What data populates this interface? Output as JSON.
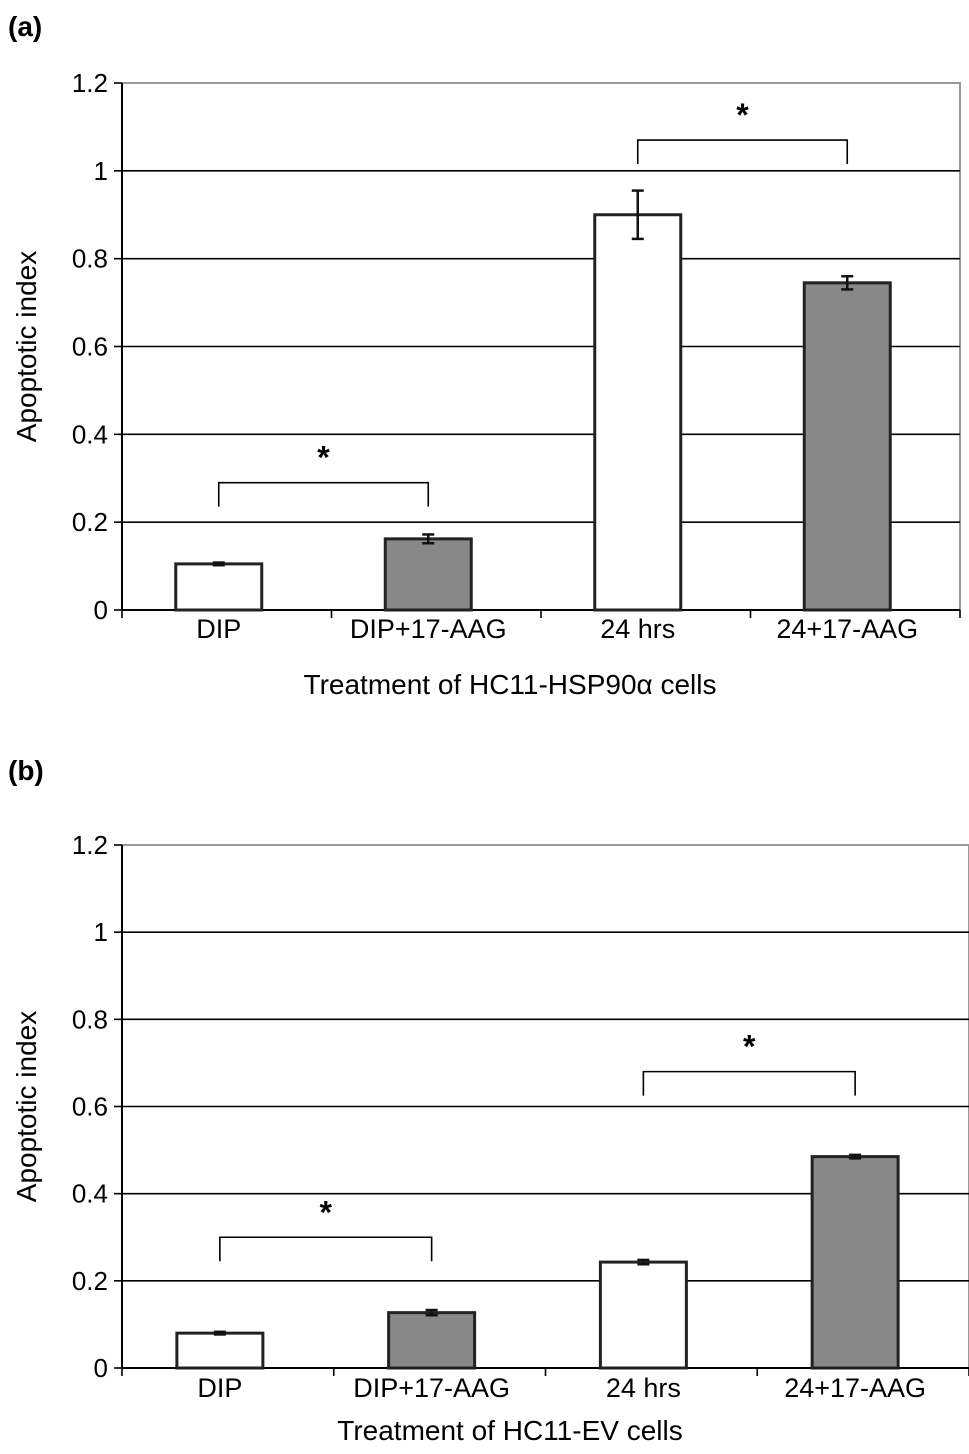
{
  "chart_data": [
    {
      "type": "bar",
      "panel_label": "(a)",
      "categories": [
        "DIP",
        "DIP+17-AAG",
        "24 hrs",
        "24+17-AAG"
      ],
      "values": [
        0.105,
        0.162,
        0.9,
        0.745
      ],
      "errors": [
        0.003,
        0.01,
        0.055,
        0.015
      ],
      "bar_colors": [
        "#ffffff",
        "#888888",
        "#ffffff",
        "#888888"
      ],
      "ylim": [
        0,
        1.2
      ],
      "yticks": [
        0,
        0.2,
        0.4,
        0.6,
        0.8,
        1,
        1.2
      ],
      "ytick_labels": [
        "0",
        "0.2",
        "0.4",
        "0.6",
        "0.8",
        "1",
        "1.2"
      ],
      "ylabel": "Apoptotic index",
      "xlabel": "Treatment of HC11-HSP90α cells",
      "grid": true,
      "significance": [
        {
          "from": 0,
          "to": 1,
          "label": "*",
          "bracket_y": 0.29
        },
        {
          "from": 2,
          "to": 3,
          "label": "*",
          "bracket_y": 1.07
        }
      ]
    },
    {
      "type": "bar",
      "panel_label": "(b)",
      "categories": [
        "DIP",
        "DIP+17-AAG",
        "24 hrs",
        "24+17-AAG"
      ],
      "values": [
        0.08,
        0.127,
        0.243,
        0.485
      ],
      "errors": [
        0.003,
        0.006,
        0.005,
        0.004
      ],
      "bar_colors": [
        "#ffffff",
        "#888888",
        "#ffffff",
        "#888888"
      ],
      "ylim": [
        0,
        1.2
      ],
      "yticks": [
        0,
        0.2,
        0.4,
        0.6,
        0.8,
        1,
        1.2
      ],
      "ytick_labels": [
        "0",
        "0.2",
        "0.4",
        "0.6",
        "0.8",
        "1",
        "1.2"
      ],
      "ylabel": "Apoptotic index",
      "xlabel": "Treatment of HC11-EV cells",
      "grid": true,
      "significance": [
        {
          "from": 0,
          "to": 1,
          "label": "*",
          "bracket_y": 0.3
        },
        {
          "from": 2,
          "to": 3,
          "label": "*",
          "bracket_y": 0.68
        }
      ]
    }
  ]
}
